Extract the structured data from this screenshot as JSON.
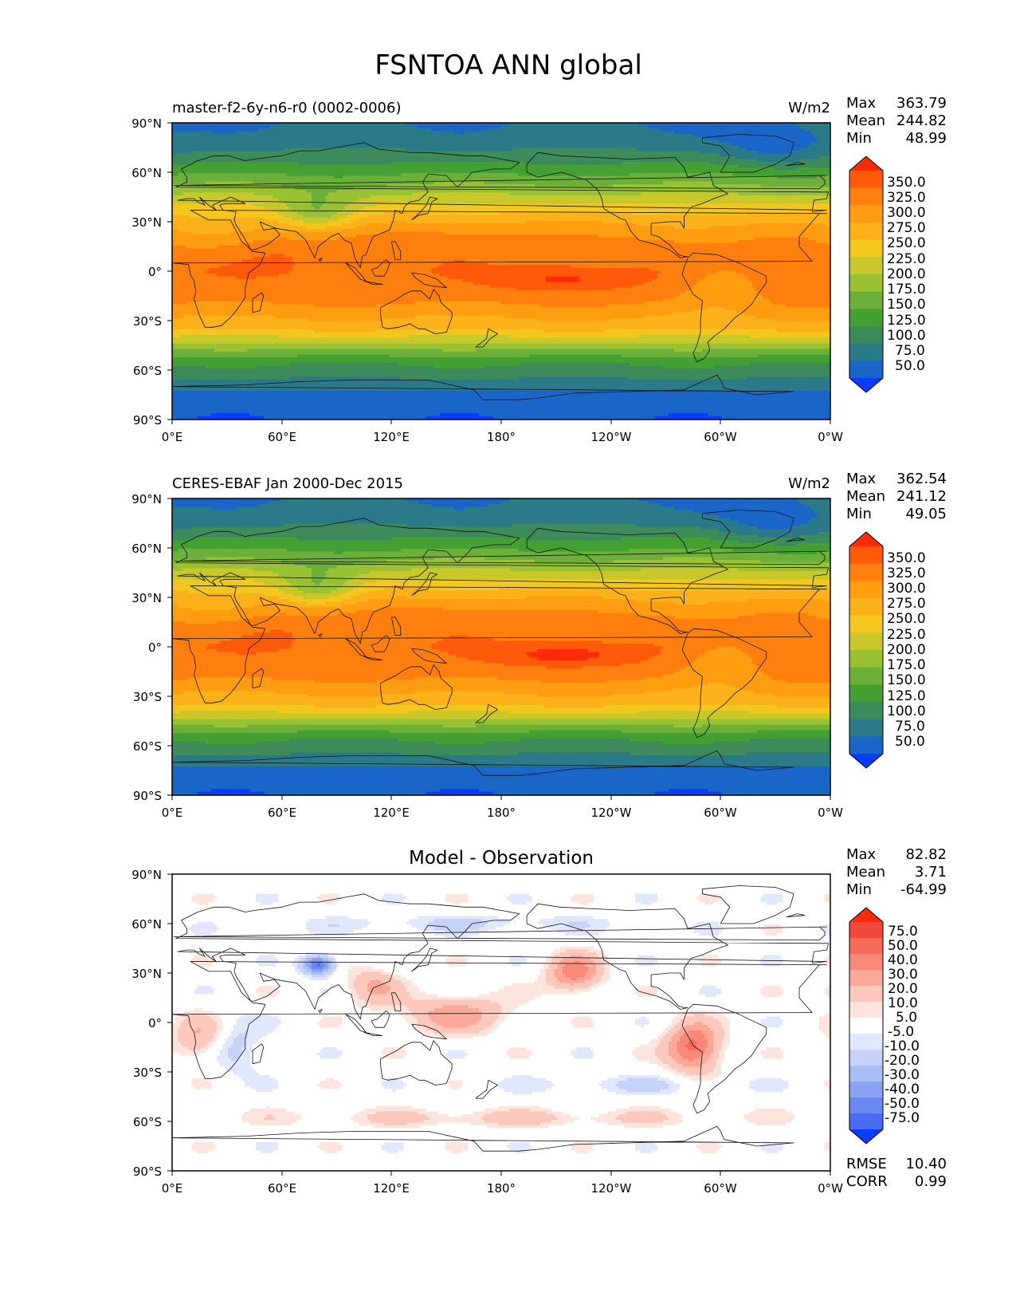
{
  "figure": {
    "title": "FSNTOA ANN global"
  },
  "chart_data": [
    {
      "type": "heatmap",
      "panel_label": "master-f2-6y-n6-r0 (0002-0006)",
      "units": "W/m2",
      "stats": [
        {
          "label": "Max",
          "value": "363.79"
        },
        {
          "label": "Mean",
          "value": "244.82"
        },
        {
          "label": "Min",
          "value": "48.99"
        }
      ],
      "x_ticks": [
        "0°E",
        "60°E",
        "120°E",
        "180°",
        "120°W",
        "60°W",
        "0°W"
      ],
      "y_ticks": [
        "90°N",
        "60°N",
        "30°N",
        "0°",
        "30°S",
        "60°S",
        "90°S"
      ],
      "xlim": [
        0,
        360
      ],
      "ylim": [
        -90,
        90
      ],
      "colorbar": {
        "levels": [
          "350.0",
          "325.0",
          "300.0",
          "275.0",
          "250.0",
          "225.0",
          "200.0",
          "175.0",
          "150.0",
          "125.0",
          "100.0",
          "75.0",
          "50.0"
        ],
        "colors": [
          "#ff2a0a",
          "#ff5a0a",
          "#ff7f0e",
          "#ff9c10",
          "#fbb21a",
          "#f3c71e",
          "#c8c82a",
          "#98c232",
          "#6cb03a",
          "#45a034",
          "#3d8a5a",
          "#2a7a8a",
          "#1a66c8",
          "#0a3cff"
        ]
      },
      "field_range": [
        48.99,
        363.79
      ]
    },
    {
      "type": "heatmap",
      "panel_label": "CERES-EBAF Jan 2000-Dec 2015",
      "units": "W/m2",
      "stats": [
        {
          "label": "Max",
          "value": "362.54"
        },
        {
          "label": "Mean",
          "value": "241.12"
        },
        {
          "label": "Min",
          "value": "49.05"
        }
      ],
      "x_ticks": [
        "0°E",
        "60°E",
        "120°E",
        "180°",
        "120°W",
        "60°W",
        "0°W"
      ],
      "y_ticks": [
        "90°N",
        "60°N",
        "30°N",
        "0°",
        "30°S",
        "60°S",
        "90°S"
      ],
      "xlim": [
        0,
        360
      ],
      "ylim": [
        -90,
        90
      ],
      "colorbar": {
        "levels": [
          "350.0",
          "325.0",
          "300.0",
          "275.0",
          "250.0",
          "225.0",
          "200.0",
          "175.0",
          "150.0",
          "125.0",
          "100.0",
          "75.0",
          "50.0"
        ],
        "colors": [
          "#ff2a0a",
          "#ff5a0a",
          "#ff7f0e",
          "#ff9c10",
          "#fbb21a",
          "#f3c71e",
          "#c8c82a",
          "#98c232",
          "#6cb03a",
          "#45a034",
          "#3d8a5a",
          "#2a7a8a",
          "#1a66c8",
          "#0a3cff"
        ]
      },
      "field_range": [
        49.05,
        362.54
      ]
    },
    {
      "type": "heatmap",
      "panel_label": "Model - Observation",
      "units": "",
      "stats": [
        {
          "label": "Max",
          "value": "82.82"
        },
        {
          "label": "Mean",
          "value": "3.71"
        },
        {
          "label": "Min",
          "value": "-64.99"
        }
      ],
      "x_ticks": [
        "0°E",
        "60°E",
        "120°E",
        "180°",
        "120°W",
        "60°W",
        "0°W"
      ],
      "y_ticks": [
        "90°N",
        "60°N",
        "30°N",
        "0°",
        "30°S",
        "60°S",
        "90°S"
      ],
      "xlim": [
        0,
        360
      ],
      "ylim": [
        -90,
        90
      ],
      "colorbar": {
        "levels": [
          "75.0",
          "50.0",
          "40.0",
          "30.0",
          "20.0",
          "10.0",
          "5.0",
          "-5.0",
          "-10.0",
          "-20.0",
          "-30.0",
          "-40.0",
          "-50.0",
          "-75.0"
        ],
        "colors": [
          "#ff2a0a",
          "#f0483c",
          "#f76a5a",
          "#f98878",
          "#fba898",
          "#fcc8bc",
          "#fde4dc",
          "#ffffff",
          "#e2e8fb",
          "#c6d2f8",
          "#a8bcf5",
          "#8aa3f2",
          "#6a88f0",
          "#4a6cf0",
          "#0a3cff"
        ]
      },
      "field_range": [
        -64.99,
        82.82
      ],
      "metrics": [
        {
          "label": "RMSE",
          "value": "10.40"
        },
        {
          "label": "CORR",
          "value": "0.99"
        }
      ]
    }
  ]
}
